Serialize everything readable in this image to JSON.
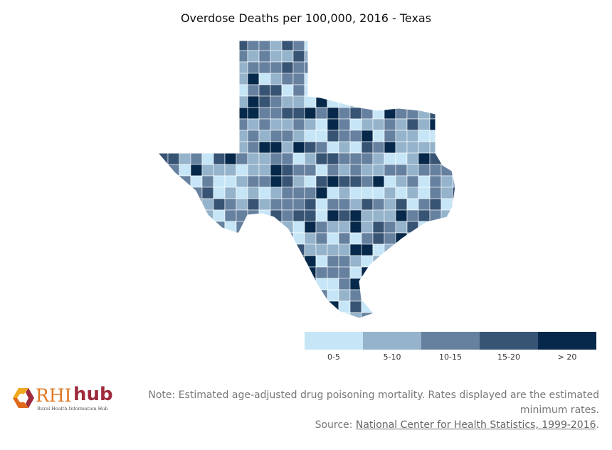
{
  "title": "Overdose Deaths per 100,000, 2016 - Texas",
  "legend": {
    "bins": [
      {
        "label": "0-5",
        "color": "#c6e6f7"
      },
      {
        "label": "5-10",
        "color": "#95b3cb"
      },
      {
        "label": "10-15",
        "color": "#66819f"
      },
      {
        "label": "15-20",
        "color": "#385474"
      },
      {
        "label": "> 20",
        "color": "#06294b"
      }
    ]
  },
  "logo": {
    "brand_a": "RHI",
    "brand_b": "hub",
    "tagline": "Rural Health Information Hub"
  },
  "note": {
    "text": "Note: Estimated age-adjusted drug poisoning mortality. Rates displayed are the estimated minimum rates.",
    "source_prefix": "Source: ",
    "source_link": "National Center for Health Statistics, 1999-2016",
    "source_suffix": "."
  }
}
